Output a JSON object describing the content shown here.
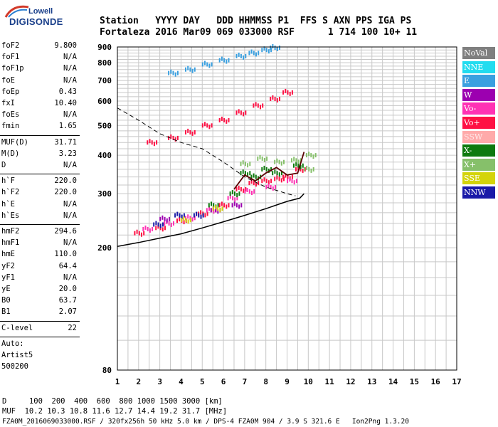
{
  "logo": {
    "line1": "Lowell",
    "line2": "DIGISONDE"
  },
  "header": {
    "row1": "Station   YYYY DAY   DDD HHMMSS P1  FFS S AXN PPS IGA PS",
    "row2": "Fortaleza 2016 Mar09 069 033000 RSF      1 714 100 10+ 11"
  },
  "params": {
    "group1": [
      {
        "label": "foF2",
        "value": "9.800"
      },
      {
        "label": "foF1",
        "value": "N/A"
      },
      {
        "label": "foF1p",
        "value": "N/A"
      },
      {
        "label": "foE",
        "value": "N/A"
      },
      {
        "label": "foEp",
        "value": "0.43"
      },
      {
        "label": "fxI",
        "value": "10.40"
      },
      {
        "label": "foEs",
        "value": "N/A"
      },
      {
        "label": "fmin",
        "value": "1.65"
      }
    ],
    "group2": [
      {
        "label": "MUF(D)",
        "value": "31.71"
      },
      {
        "label": "M(D)",
        "value": "3.23"
      },
      {
        "label": "D",
        "value": "N/A"
      }
    ],
    "group3": [
      {
        "label": "h`F",
        "value": "220.0"
      },
      {
        "label": "h`F2",
        "value": "220.0"
      },
      {
        "label": "h`E",
        "value": "N/A"
      },
      {
        "label": "h`Es",
        "value": "N/A"
      }
    ],
    "group4": [
      {
        "label": "hmF2",
        "value": "294.6"
      },
      {
        "label": "hmF1",
        "value": "N/A"
      },
      {
        "label": "hmE",
        "value": "110.0"
      },
      {
        "label": "yF2",
        "value": "64.4"
      },
      {
        "label": "yF1",
        "value": "N/A"
      },
      {
        "label": "yE",
        "value": "20.0"
      },
      {
        "label": "B0",
        "value": "63.7"
      },
      {
        "label": "B1",
        "value": "2.07"
      }
    ],
    "clevel": {
      "label": "C-level",
      "value": "22"
    },
    "footer_lines": [
      "Auto:",
      "Artist5",
      "500200"
    ]
  },
  "legend": [
    {
      "label": "NoVal",
      "color": "#7f7f7f"
    },
    {
      "label": "NNE",
      "color": "#22dcef"
    },
    {
      "label": "E",
      "color": "#3aa0e0"
    },
    {
      "label": "W",
      "color": "#9c00b0"
    },
    {
      "label": "Vo-",
      "color": "#ff32b4"
    },
    {
      "label": "Vo+",
      "color": "#ff1144"
    },
    {
      "label": "SSW",
      "color": "#ffaaaa"
    },
    {
      "label": "X-",
      "color": "#0e7a0e"
    },
    {
      "label": "X+",
      "color": "#86c06a"
    },
    {
      "label": "SSE",
      "color": "#d4d40a"
    },
    {
      "label": "NNW",
      "color": "#1a1aa8"
    }
  ],
  "footer": {
    "d_row": "D     100  200  400  600  800 1000 1500 3000 [km]",
    "muf_row": "MUF  10.2 10.3 10.8 11.6 12.7 14.4 19.2 31.7 [MHz]",
    "file_row": "FZA0M_2016069033000.RSF / 320fx256h 50 kHz 5.0 km / DPS-4 FZA0M 904 / 3.9 S 321.6 E   Ion2Png 1.3.20"
  },
  "chart_data": {
    "type": "scatter",
    "title": "",
    "xlabel": "",
    "ylabel": "",
    "xlim": [
      1,
      17
    ],
    "ylim": [
      80,
      900
    ],
    "y_scale": "log",
    "grid": true,
    "x_ticks": [
      "1",
      "2",
      "3",
      "4",
      "5",
      "6",
      "7",
      "8",
      "9",
      "10",
      "11",
      "12",
      "13",
      "14",
      "15",
      "16",
      "17"
    ],
    "y_ticks": [
      "80",
      "200",
      "300",
      "400",
      "500",
      "600",
      "700",
      "800",
      "900"
    ],
    "series": [
      {
        "name": "E",
        "color": "#3aa0e0",
        "points": [
          [
            3.6,
            740
          ],
          [
            4.4,
            760
          ],
          [
            5.2,
            790
          ],
          [
            6.0,
            815
          ],
          [
            6.8,
            840
          ],
          [
            7.4,
            860
          ],
          [
            8.0,
            880
          ],
          [
            8.4,
            895
          ]
        ]
      },
      {
        "name": "Vo+",
        "color": "#ff1144",
        "points": [
          [
            2.0,
            223
          ],
          [
            3.0,
            232
          ],
          [
            4.0,
            245
          ],
          [
            5.0,
            258
          ],
          [
            6.0,
            275
          ],
          [
            6.8,
            310
          ],
          [
            7.4,
            325
          ],
          [
            8.0,
            330
          ],
          [
            8.6,
            335
          ],
          [
            9.0,
            340
          ],
          [
            9.6,
            360
          ],
          [
            2.6,
            440
          ],
          [
            3.6,
            455
          ],
          [
            4.4,
            475
          ],
          [
            5.2,
            500
          ],
          [
            6.0,
            520
          ],
          [
            6.8,
            550
          ],
          [
            7.6,
            580
          ],
          [
            8.4,
            610
          ],
          [
            9.0,
            640
          ]
        ]
      },
      {
        "name": "Vo-",
        "color": "#ff32b4",
        "points": [
          [
            2.4,
            230
          ],
          [
            3.4,
            240
          ],
          [
            4.4,
            250
          ],
          [
            5.4,
            265
          ],
          [
            6.4,
            290
          ],
          [
            7.2,
            305
          ],
          [
            8.2,
            315
          ],
          [
            9.2,
            330
          ]
        ]
      },
      {
        "name": "X-",
        "color": "#0e7a0e",
        "points": [
          [
            5.5,
            275
          ],
          [
            6.5,
            300
          ],
          [
            7.5,
            340
          ],
          [
            8.5,
            350
          ],
          [
            9.5,
            370
          ],
          [
            7.0,
            350
          ],
          [
            8.0,
            360
          ]
        ]
      },
      {
        "name": "X+",
        "color": "#86c06a",
        "points": [
          [
            7.0,
            375
          ],
          [
            7.8,
            390
          ],
          [
            8.6,
            380
          ],
          [
            9.4,
            385
          ],
          [
            10.0,
            360
          ],
          [
            10.1,
            400
          ]
        ]
      },
      {
        "name": "W",
        "color": "#9c00b0",
        "points": [
          [
            3.2,
            248
          ],
          [
            5.6,
            265
          ],
          [
            6.6,
            275
          ]
        ]
      },
      {
        "name": "NNW",
        "color": "#1a1aa8",
        "points": [
          [
            2.9,
            238
          ],
          [
            3.9,
            255
          ],
          [
            4.8,
            255
          ]
        ]
      },
      {
        "name": "SSE",
        "color": "#d4d40a",
        "points": [
          [
            4.2,
            246
          ],
          [
            5.7,
            268
          ]
        ]
      }
    ],
    "profile_curve": [
      [
        1.0,
        202
      ],
      [
        2.0,
        208
      ],
      [
        3.0,
        215
      ],
      [
        4.0,
        222
      ],
      [
        5.0,
        232
      ],
      [
        6.0,
        243
      ],
      [
        7.0,
        255
      ],
      [
        8.0,
        268
      ],
      [
        9.0,
        283
      ],
      [
        9.6,
        290
      ],
      [
        9.8,
        300
      ]
    ],
    "muf_curve": [
      [
        1.0,
        570
      ],
      [
        2.0,
        520
      ],
      [
        3.0,
        470
      ],
      [
        4.0,
        440
      ],
      [
        5.0,
        420
      ],
      [
        6.0,
        380
      ],
      [
        7.0,
        340
      ],
      [
        8.0,
        315
      ],
      [
        9.0,
        300
      ],
      [
        9.4,
        295
      ]
    ],
    "trace_curve": [
      [
        6.5,
        310
      ],
      [
        7.0,
        345
      ],
      [
        7.5,
        330
      ],
      [
        8.0,
        350
      ],
      [
        8.5,
        365
      ],
      [
        9.0,
        345
      ],
      [
        9.5,
        350
      ],
      [
        9.8,
        410
      ]
    ]
  }
}
